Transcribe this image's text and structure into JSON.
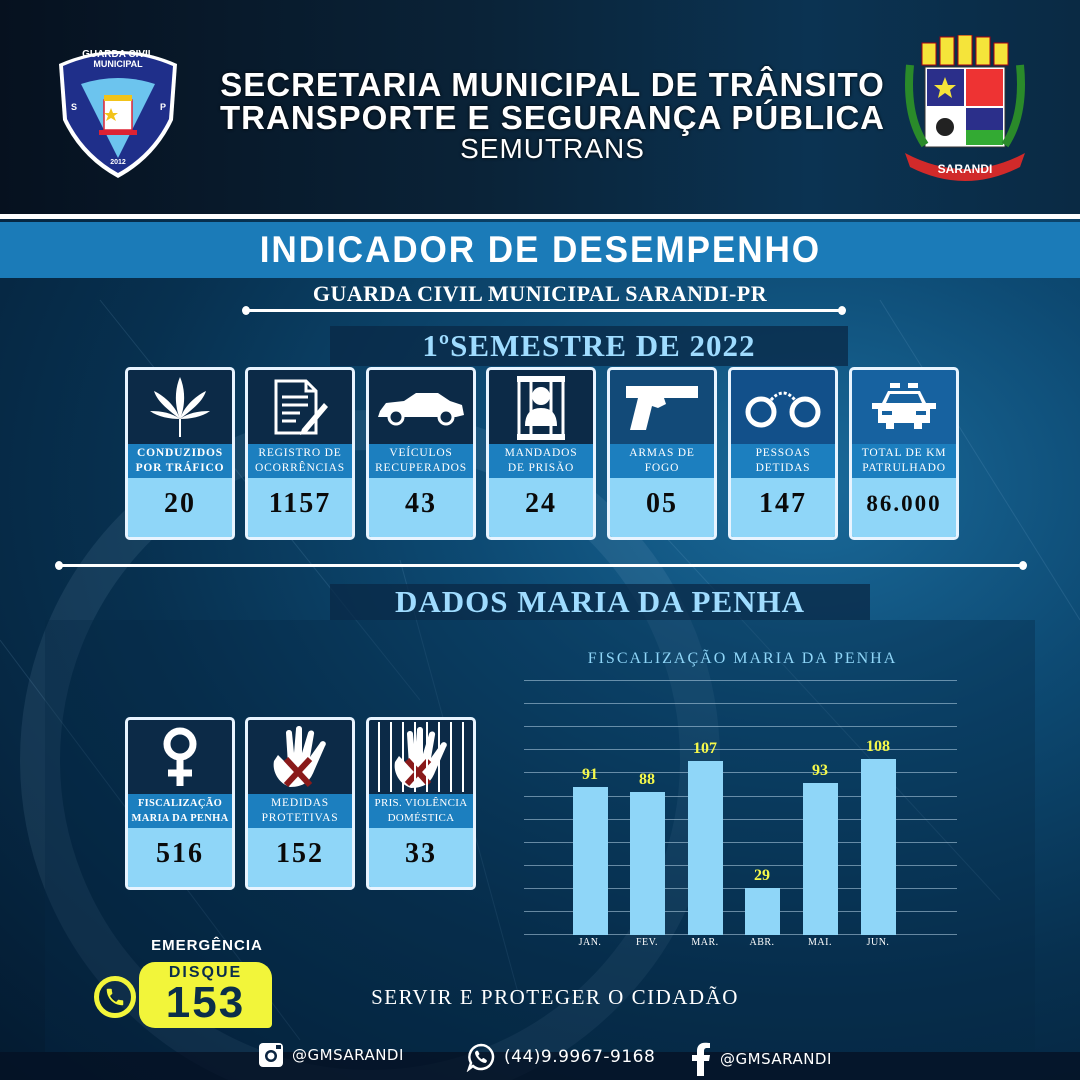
{
  "header": {
    "line1": "SECRETARIA MUNICIPAL DE TRÂNSITO",
    "line2": "TRANSPORTE E SEGURANÇA PÚBLICA",
    "line3": "SEMUTRANS",
    "left_logo": {
      "top_text": "GUARDA CIVIL MUNICIPAL",
      "left_text": "SARANDI",
      "right_text": "PARANÁ",
      "year": "2012"
    },
    "right_logo": {
      "ribbon_text": "SARANDI"
    }
  },
  "banner": {
    "title": "INDICADOR DE DESEMPENHO"
  },
  "subtitle": "GUARDA CIVIL MUNICIPAL SARANDI-PR",
  "semester": "1ºSEMESTRE DE 2022",
  "indicators": [
    {
      "icon": "cannabis-leaf-icon",
      "label1": "CONDUZIDOS",
      "label2": "POR TRÁFICO",
      "value": "20"
    },
    {
      "icon": "document-pen-icon",
      "label1": "REGISTRO DE",
      "label2": "OCORRÊNCIAS",
      "value": "1157"
    },
    {
      "icon": "car-icon",
      "label1": "VEÍCULOS",
      "label2": "RECUPERADOS",
      "value": "43"
    },
    {
      "icon": "prisoner-bars-icon",
      "label1": "MANDADOS",
      "label2": "DE PRISÃO",
      "value": "24"
    },
    {
      "icon": "pistol-icon",
      "label1": "ARMAS DE",
      "label2": "FOGO",
      "value": "05"
    },
    {
      "icon": "handcuffs-icon",
      "label1": "PESSOAS",
      "label2": "DETIDAS",
      "value": "147"
    },
    {
      "icon": "police-car-icon",
      "label1": "TOTAL DE KM",
      "label2": "PATRULHADO",
      "value": "86.000"
    }
  ],
  "maria_da_penha": {
    "title": "DADOS MARIA DA PENHA",
    "cards": [
      {
        "icon": "female-symbol-icon",
        "label1": "FISCALIZAÇÃO",
        "label2": "MARIA DA PENHA",
        "value": "516"
      },
      {
        "icon": "hand-x-icon",
        "label1": "MEDIDAS",
        "label2": "PROTETIVAS",
        "value": "152"
      },
      {
        "icon": "hand-x-bars-icon",
        "label1": "PRIS. VIOLÊNCIA",
        "label2": "DOMÉSTICA",
        "value": "33"
      }
    ]
  },
  "chart_data": {
    "type": "bar",
    "title": "FISCALIZAÇÃO MARIA DA PENHA",
    "categories": [
      "JAN.",
      "FEV.",
      "MAR.",
      "ABR.",
      "MAI.",
      "JUN."
    ],
    "values": [
      91,
      88,
      107,
      29,
      93,
      108
    ],
    "xlabel": "",
    "ylabel": "",
    "ylim": [
      0,
      156
    ],
    "grid": true,
    "data_labels": true,
    "colors": {
      "bar": "#8fd6f8",
      "label": "#f6f94a"
    }
  },
  "emergency": {
    "label": "EMERGÊNCIA",
    "disque": "DISQUE",
    "number": "153"
  },
  "slogan": "SERVIR E PROTEGER O CIDADÃO",
  "footer": {
    "instagram": "@GMSARANDI",
    "whatsapp": "(44)9.9967-9168",
    "facebook": "@GMSARANDI"
  },
  "colors": {
    "band": "#1b7bb8",
    "card_label": "#1c7fbf",
    "card_value": "#8fd6f8",
    "accent_yellow": "#f2f53a",
    "title_light": "#9fdcff"
  }
}
